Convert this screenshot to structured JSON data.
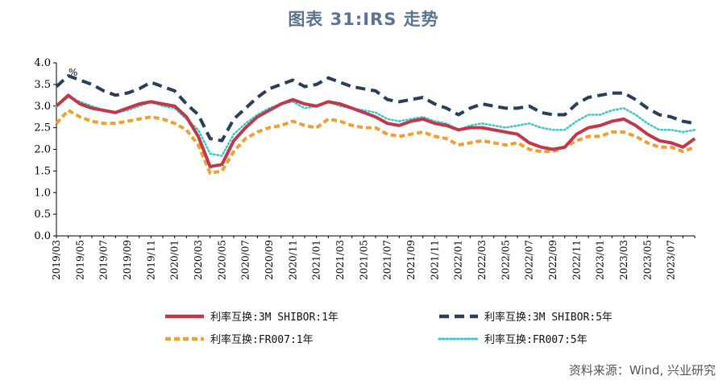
{
  "title": "图表 31:IRS 走势",
  "source": "资料来源：Wind, 兴业研究",
  "chart_data": {
    "type": "line",
    "unit_label": "%",
    "ylim": [
      0.0,
      4.0
    ],
    "y_ticks": [
      "0.0",
      "0.5",
      "1.0",
      "1.5",
      "2.0",
      "2.5",
      "3.0",
      "3.5",
      "4.0"
    ],
    "x_ticks": [
      "2019/03",
      "2019/05",
      "2019/07",
      "2019/09",
      "2019/11",
      "2020/01",
      "2020/03",
      "2020/05",
      "2020/07",
      "2020/09",
      "2020/11",
      "2021/01",
      "2021/03",
      "2021/05",
      "2021/07",
      "2021/09",
      "2021/11",
      "2022/01",
      "2022/03",
      "2022/05",
      "2022/07",
      "2022/09",
      "2022/11",
      "2023/01",
      "2023/03",
      "2023/05",
      "2023/07"
    ],
    "x_range": [
      "2019/03",
      "2023/09"
    ],
    "grid": false,
    "legend_position": "bottom",
    "series": [
      {
        "name": "利率互换:3M SHIBOR:1年",
        "color": "#c0394b",
        "style": "solid",
        "points": [
          [
            "2019/03",
            3.0
          ],
          [
            "2019/04",
            3.25
          ],
          [
            "2019/05",
            3.05
          ],
          [
            "2019/06",
            2.95
          ],
          [
            "2019/07",
            2.9
          ],
          [
            "2019/08",
            2.85
          ],
          [
            "2019/09",
            2.95
          ],
          [
            "2019/10",
            3.05
          ],
          [
            "2019/11",
            3.1
          ],
          [
            "2019/12",
            3.05
          ],
          [
            "2020/01",
            3.0
          ],
          [
            "2020/02",
            2.75
          ],
          [
            "2020/03",
            2.3
          ],
          [
            "2020/04",
            1.6
          ],
          [
            "2020/05",
            1.65
          ],
          [
            "2020/06",
            2.2
          ],
          [
            "2020/07",
            2.5
          ],
          [
            "2020/08",
            2.75
          ],
          [
            "2020/09",
            2.9
          ],
          [
            "2020/10",
            3.05
          ],
          [
            "2020/11",
            3.15
          ],
          [
            "2020/12",
            3.05
          ],
          [
            "2021/01",
            3.0
          ],
          [
            "2021/02",
            3.1
          ],
          [
            "2021/03",
            3.05
          ],
          [
            "2021/04",
            2.95
          ],
          [
            "2021/05",
            2.85
          ],
          [
            "2021/06",
            2.75
          ],
          [
            "2021/07",
            2.6
          ],
          [
            "2021/08",
            2.55
          ],
          [
            "2021/09",
            2.65
          ],
          [
            "2021/10",
            2.7
          ],
          [
            "2021/11",
            2.6
          ],
          [
            "2021/12",
            2.55
          ],
          [
            "2022/01",
            2.45
          ],
          [
            "2022/02",
            2.5
          ],
          [
            "2022/03",
            2.5
          ],
          [
            "2022/04",
            2.45
          ],
          [
            "2022/05",
            2.4
          ],
          [
            "2022/06",
            2.35
          ],
          [
            "2022/07",
            2.15
          ],
          [
            "2022/08",
            2.05
          ],
          [
            "2022/09",
            2.0
          ],
          [
            "2022/10",
            2.05
          ],
          [
            "2022/11",
            2.35
          ],
          [
            "2022/12",
            2.5
          ],
          [
            "2023/01",
            2.55
          ],
          [
            "2023/02",
            2.65
          ],
          [
            "2023/03",
            2.7
          ],
          [
            "2023/04",
            2.55
          ],
          [
            "2023/05",
            2.35
          ],
          [
            "2023/06",
            2.2
          ],
          [
            "2023/07",
            2.15
          ],
          [
            "2023/08",
            2.05
          ],
          [
            "2023/09",
            2.25
          ]
        ]
      },
      {
        "name": "利率互换:3M SHIBOR:5年",
        "color": "#2a3e5a",
        "style": "dash",
        "points": [
          [
            "2019/03",
            3.45
          ],
          [
            "2019/04",
            3.7
          ],
          [
            "2019/05",
            3.6
          ],
          [
            "2019/06",
            3.5
          ],
          [
            "2019/07",
            3.35
          ],
          [
            "2019/08",
            3.25
          ],
          [
            "2019/09",
            3.3
          ],
          [
            "2019/10",
            3.4
          ],
          [
            "2019/11",
            3.55
          ],
          [
            "2019/12",
            3.45
          ],
          [
            "2020/01",
            3.35
          ],
          [
            "2020/02",
            3.05
          ],
          [
            "2020/03",
            2.8
          ],
          [
            "2020/04",
            2.25
          ],
          [
            "2020/05",
            2.2
          ],
          [
            "2020/06",
            2.7
          ],
          [
            "2020/07",
            2.95
          ],
          [
            "2020/08",
            3.2
          ],
          [
            "2020/09",
            3.4
          ],
          [
            "2020/10",
            3.5
          ],
          [
            "2020/11",
            3.6
          ],
          [
            "2020/12",
            3.45
          ],
          [
            "2021/01",
            3.5
          ],
          [
            "2021/02",
            3.65
          ],
          [
            "2021/03",
            3.55
          ],
          [
            "2021/04",
            3.45
          ],
          [
            "2021/05",
            3.4
          ],
          [
            "2021/06",
            3.35
          ],
          [
            "2021/07",
            3.15
          ],
          [
            "2021/08",
            3.1
          ],
          [
            "2021/09",
            3.15
          ],
          [
            "2021/10",
            3.2
          ],
          [
            "2021/11",
            3.05
          ],
          [
            "2021/12",
            2.95
          ],
          [
            "2022/01",
            2.8
          ],
          [
            "2022/02",
            2.95
          ],
          [
            "2022/03",
            3.05
          ],
          [
            "2022/04",
            3.0
          ],
          [
            "2022/05",
            2.95
          ],
          [
            "2022/06",
            2.95
          ],
          [
            "2022/07",
            3.0
          ],
          [
            "2022/08",
            2.85
          ],
          [
            "2022/09",
            2.8
          ],
          [
            "2022/10",
            2.8
          ],
          [
            "2022/11",
            3.05
          ],
          [
            "2022/12",
            3.2
          ],
          [
            "2023/01",
            3.25
          ],
          [
            "2023/02",
            3.3
          ],
          [
            "2023/03",
            3.3
          ],
          [
            "2023/04",
            3.15
          ],
          [
            "2023/05",
            2.95
          ],
          [
            "2023/06",
            2.8
          ],
          [
            "2023/07",
            2.75
          ],
          [
            "2023/08",
            2.65
          ],
          [
            "2023/09",
            2.6
          ]
        ]
      },
      {
        "name": "利率互换:FR007:1年",
        "color": "#f0a030",
        "style": "dot-dash",
        "points": [
          [
            "2019/03",
            2.6
          ],
          [
            "2019/04",
            2.9
          ],
          [
            "2019/05",
            2.75
          ],
          [
            "2019/06",
            2.65
          ],
          [
            "2019/07",
            2.6
          ],
          [
            "2019/08",
            2.6
          ],
          [
            "2019/09",
            2.65
          ],
          [
            "2019/10",
            2.7
          ],
          [
            "2019/11",
            2.75
          ],
          [
            "2019/12",
            2.7
          ],
          [
            "2020/01",
            2.6
          ],
          [
            "2020/02",
            2.45
          ],
          [
            "2020/03",
            2.1
          ],
          [
            "2020/04",
            1.45
          ],
          [
            "2020/05",
            1.5
          ],
          [
            "2020/06",
            1.95
          ],
          [
            "2020/07",
            2.25
          ],
          [
            "2020/08",
            2.4
          ],
          [
            "2020/09",
            2.5
          ],
          [
            "2020/10",
            2.55
          ],
          [
            "2020/11",
            2.65
          ],
          [
            "2020/12",
            2.55
          ],
          [
            "2021/01",
            2.5
          ],
          [
            "2021/02",
            2.7
          ],
          [
            "2021/03",
            2.65
          ],
          [
            "2021/04",
            2.55
          ],
          [
            "2021/05",
            2.5
          ],
          [
            "2021/06",
            2.5
          ],
          [
            "2021/07",
            2.35
          ],
          [
            "2021/08",
            2.3
          ],
          [
            "2021/09",
            2.35
          ],
          [
            "2021/10",
            2.4
          ],
          [
            "2021/11",
            2.3
          ],
          [
            "2021/12",
            2.25
          ],
          [
            "2022/01",
            2.1
          ],
          [
            "2022/02",
            2.15
          ],
          [
            "2022/03",
            2.2
          ],
          [
            "2022/04",
            2.15
          ],
          [
            "2022/05",
            2.1
          ],
          [
            "2022/06",
            2.15
          ],
          [
            "2022/07",
            2.0
          ],
          [
            "2022/08",
            1.95
          ],
          [
            "2022/09",
            1.95
          ],
          [
            "2022/10",
            2.05
          ],
          [
            "2022/11",
            2.2
          ],
          [
            "2022/12",
            2.3
          ],
          [
            "2023/01",
            2.3
          ],
          [
            "2023/02",
            2.4
          ],
          [
            "2023/03",
            2.4
          ],
          [
            "2023/04",
            2.3
          ],
          [
            "2023/05",
            2.15
          ],
          [
            "2023/06",
            2.05
          ],
          [
            "2023/07",
            2.05
          ],
          [
            "2023/08",
            1.95
          ],
          [
            "2023/09",
            2.05
          ]
        ]
      },
      {
        "name": "利率互换:FR007:5年",
        "color": "#40c8c8",
        "style": "dot",
        "points": [
          [
            "2019/03",
            3.0
          ],
          [
            "2019/04",
            3.2
          ],
          [
            "2019/05",
            3.1
          ],
          [
            "2019/06",
            3.0
          ],
          [
            "2019/07",
            2.9
          ],
          [
            "2019/08",
            2.85
          ],
          [
            "2019/09",
            2.9
          ],
          [
            "2019/10",
            3.0
          ],
          [
            "2019/11",
            3.1
          ],
          [
            "2019/12",
            3.0
          ],
          [
            "2020/01",
            2.95
          ],
          [
            "2020/02",
            2.7
          ],
          [
            "2020/03",
            2.45
          ],
          [
            "2020/04",
            1.9
          ],
          [
            "2020/05",
            1.85
          ],
          [
            "2020/06",
            2.35
          ],
          [
            "2020/07",
            2.6
          ],
          [
            "2020/08",
            2.8
          ],
          [
            "2020/09",
            2.95
          ],
          [
            "2020/10",
            3.05
          ],
          [
            "2020/11",
            3.1
          ],
          [
            "2020/12",
            2.95
          ],
          [
            "2021/01",
            3.0
          ],
          [
            "2021/02",
            3.1
          ],
          [
            "2021/03",
            3.0
          ],
          [
            "2021/04",
            2.95
          ],
          [
            "2021/05",
            2.9
          ],
          [
            "2021/06",
            2.85
          ],
          [
            "2021/07",
            2.7
          ],
          [
            "2021/08",
            2.65
          ],
          [
            "2021/09",
            2.7
          ],
          [
            "2021/10",
            2.75
          ],
          [
            "2021/11",
            2.65
          ],
          [
            "2021/12",
            2.6
          ],
          [
            "2022/01",
            2.45
          ],
          [
            "2022/02",
            2.55
          ],
          [
            "2022/03",
            2.6
          ],
          [
            "2022/04",
            2.55
          ],
          [
            "2022/05",
            2.5
          ],
          [
            "2022/06",
            2.55
          ],
          [
            "2022/07",
            2.6
          ],
          [
            "2022/08",
            2.5
          ],
          [
            "2022/09",
            2.45
          ],
          [
            "2022/10",
            2.45
          ],
          [
            "2022/11",
            2.65
          ],
          [
            "2022/12",
            2.8
          ],
          [
            "2023/01",
            2.8
          ],
          [
            "2023/02",
            2.9
          ],
          [
            "2023/03",
            2.95
          ],
          [
            "2023/04",
            2.8
          ],
          [
            "2023/05",
            2.6
          ],
          [
            "2023/06",
            2.45
          ],
          [
            "2023/07",
            2.45
          ],
          [
            "2023/08",
            2.4
          ],
          [
            "2023/09",
            2.45
          ]
        ]
      }
    ]
  }
}
